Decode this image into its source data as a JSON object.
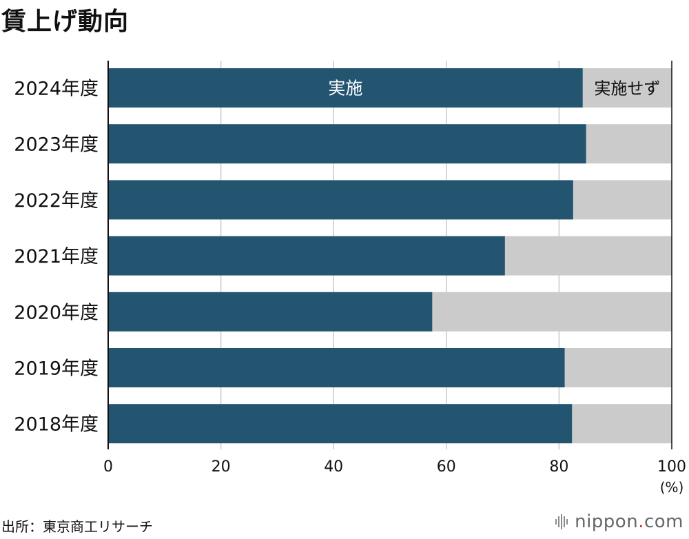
{
  "title": "賃上げ動向",
  "source": "出所：東京商工リサーチ",
  "brand": {
    "name": "nippon",
    "dot": ".",
    "domain": "com"
  },
  "colors": {
    "implemented": "#235571",
    "not_implemented": "#cbcbcb",
    "grid": "#c9c9c9",
    "axis": "#111111"
  },
  "chart_data": {
    "type": "bar",
    "orientation": "horizontal",
    "stacked": true,
    "categories": [
      "2024年度",
      "2023年度",
      "2022年度",
      "2021年度",
      "2020年度",
      "2019年度",
      "2018年度"
    ],
    "series": [
      {
        "name": "実施",
        "values": [
          84.2,
          84.8,
          82.5,
          70.4,
          57.5,
          81.0,
          82.3
        ]
      },
      {
        "name": "実施せず",
        "values": [
          15.8,
          15.2,
          17.5,
          29.6,
          42.5,
          19.0,
          17.7
        ]
      }
    ],
    "xlim": [
      0,
      100
    ],
    "xticks": [
      "0",
      "20",
      "40",
      "60",
      "80",
      "100"
    ],
    "xunit": "(%)",
    "grid": true
  }
}
